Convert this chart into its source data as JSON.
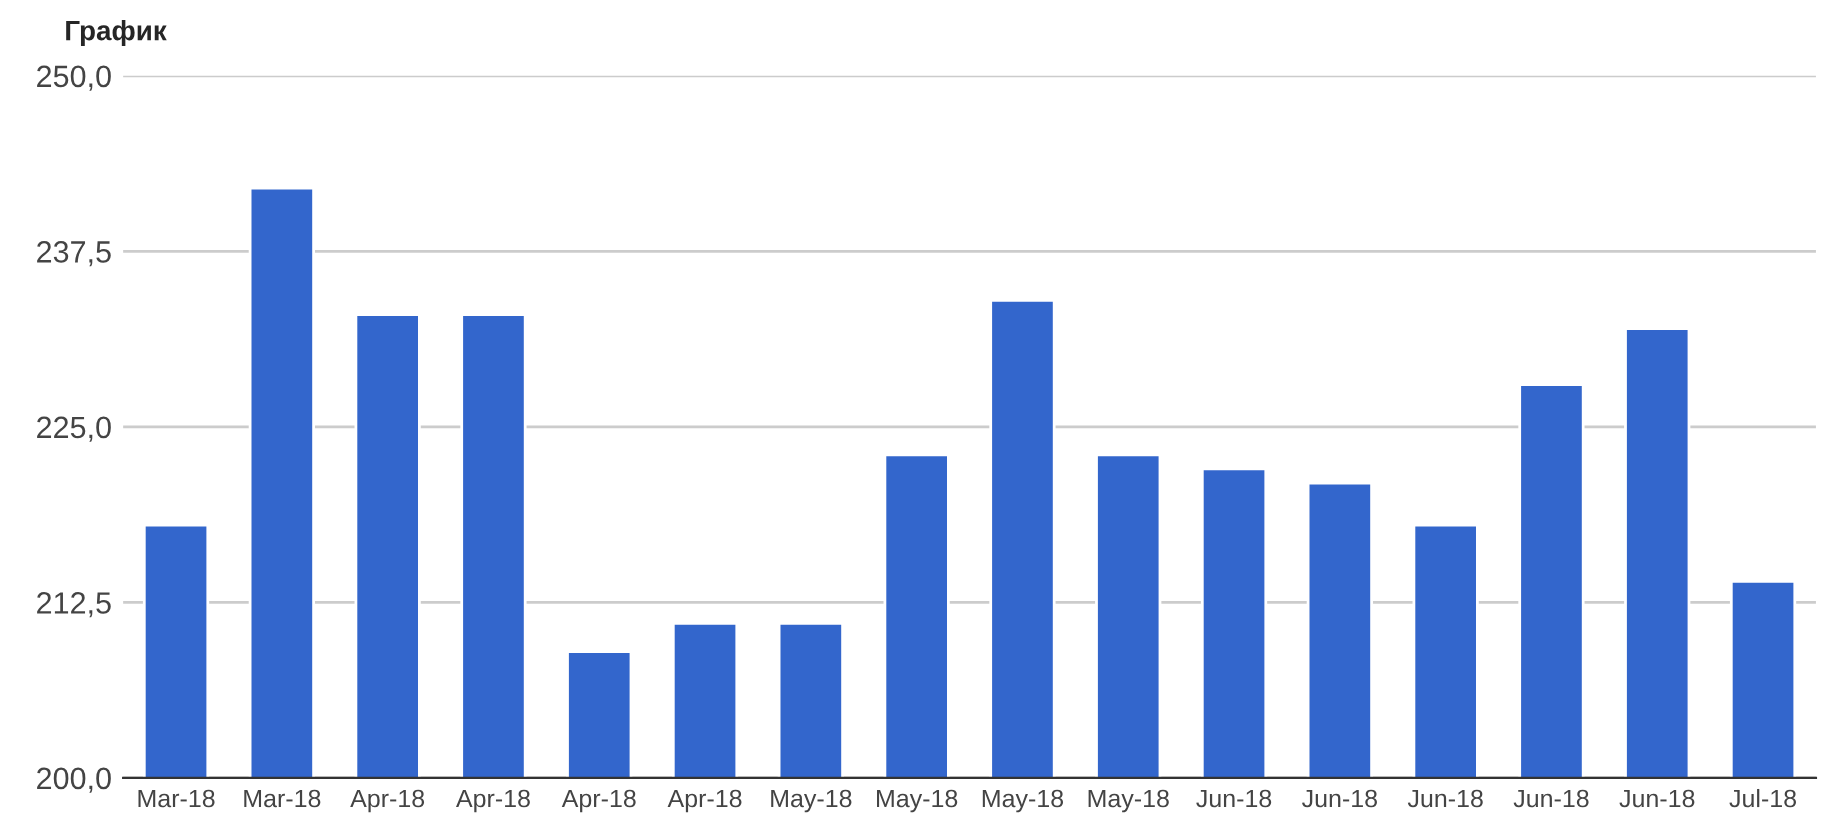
{
  "chart_data": {
    "type": "bar",
    "title": "График",
    "categories": [
      "Mar-18",
      "Mar-18",
      "Apr-18",
      "Apr-18",
      "Apr-18",
      "Apr-18",
      "May-18",
      "May-18",
      "May-18",
      "May-18",
      "Jun-18",
      "Jun-18",
      "Jun-18",
      "Jun-18",
      "Jun-18",
      "Jul-18"
    ],
    "values": [
      218,
      242,
      233,
      233,
      209,
      211,
      211,
      223,
      234,
      223,
      222,
      221,
      218,
      228,
      232,
      214
    ],
    "color": "#3366cc",
    "ylim": [
      200,
      250
    ],
    "yticks": [
      {
        "value": 200,
        "label": "200,0"
      },
      {
        "value": 212.5,
        "label": "212,5"
      },
      {
        "value": 225,
        "label": "225,0"
      },
      {
        "value": 237.5,
        "label": "237,5"
      },
      {
        "value": 250,
        "label": "250,0"
      }
    ],
    "grid": "y"
  }
}
